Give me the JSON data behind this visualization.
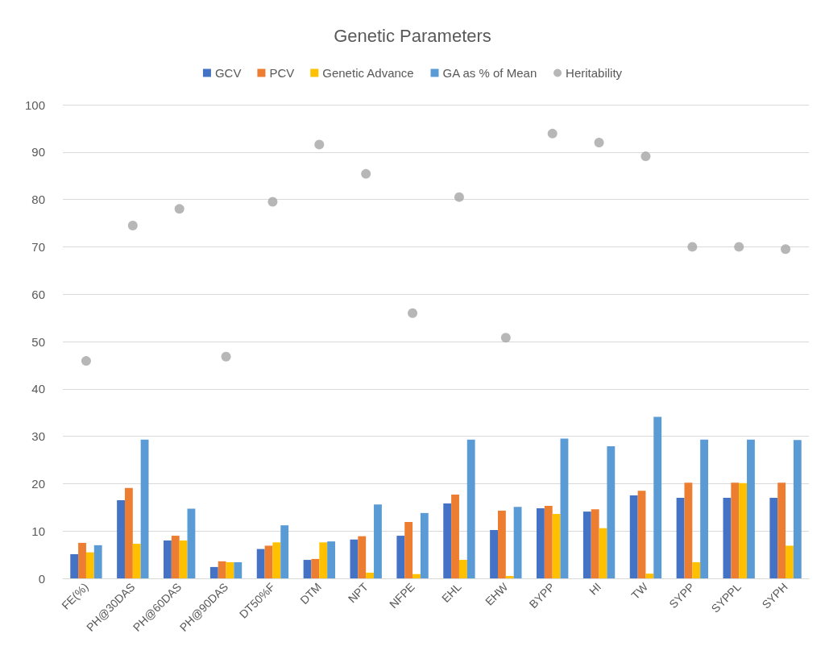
{
  "chart_data": {
    "type": "bar",
    "title": "Genetic Parameters",
    "categories": [
      "FE(%)",
      "PH@30DAS",
      "PH@60DAS",
      "PH@90DAS",
      "DT50%F",
      "DTM",
      "NPT",
      "NFPE",
      "EHL",
      "EHW",
      "BYPP",
      "HI",
      "TW",
      "SYPP",
      "SYPPL",
      "SYPH"
    ],
    "series": [
      {
        "name": "GCV",
        "color": "#4472c4",
        "values": [
          5.1,
          16.5,
          8.0,
          2.4,
          6.2,
          3.9,
          8.2,
          9.0,
          15.8,
          10.2,
          14.8,
          14.1,
          17.5,
          17.0,
          17.0,
          17.0
        ]
      },
      {
        "name": "PCV",
        "color": "#ed7d31",
        "values": [
          7.5,
          19.1,
          9.0,
          3.6,
          6.9,
          4.1,
          8.9,
          11.9,
          17.7,
          14.3,
          15.3,
          14.6,
          18.5,
          20.2,
          20.2,
          20.2
        ]
      },
      {
        "name": "Genetic Advance",
        "color": "#ffc000",
        "values": [
          5.5,
          7.3,
          8.0,
          3.4,
          7.6,
          7.6,
          1.2,
          0.9,
          3.9,
          0.5,
          13.6,
          10.6,
          1.0,
          3.4,
          20.1,
          6.9
        ]
      },
      {
        "name": "GA as % of Mean",
        "color": "#5b9bd5",
        "values": [
          7.0,
          29.3,
          14.7,
          3.4,
          11.2,
          7.8,
          15.6,
          13.8,
          29.3,
          15.1,
          29.5,
          27.9,
          34.1,
          29.3,
          29.3,
          29.2
        ]
      },
      {
        "name": "Heritability",
        "type": "scatter",
        "color": "#a5a5a5",
        "values": [
          45.9,
          74.5,
          78.0,
          46.8,
          79.5,
          91.6,
          85.4,
          56.0,
          80.5,
          50.8,
          93.9,
          92.0,
          89.1,
          70.0,
          70.0,
          69.5
        ]
      }
    ],
    "ylim": [
      0,
      100
    ],
    "yticks": [
      0,
      10,
      20,
      30,
      40,
      50,
      60,
      70,
      80,
      90,
      100
    ],
    "grid": "y",
    "legend": "top",
    "marker": "circle"
  }
}
